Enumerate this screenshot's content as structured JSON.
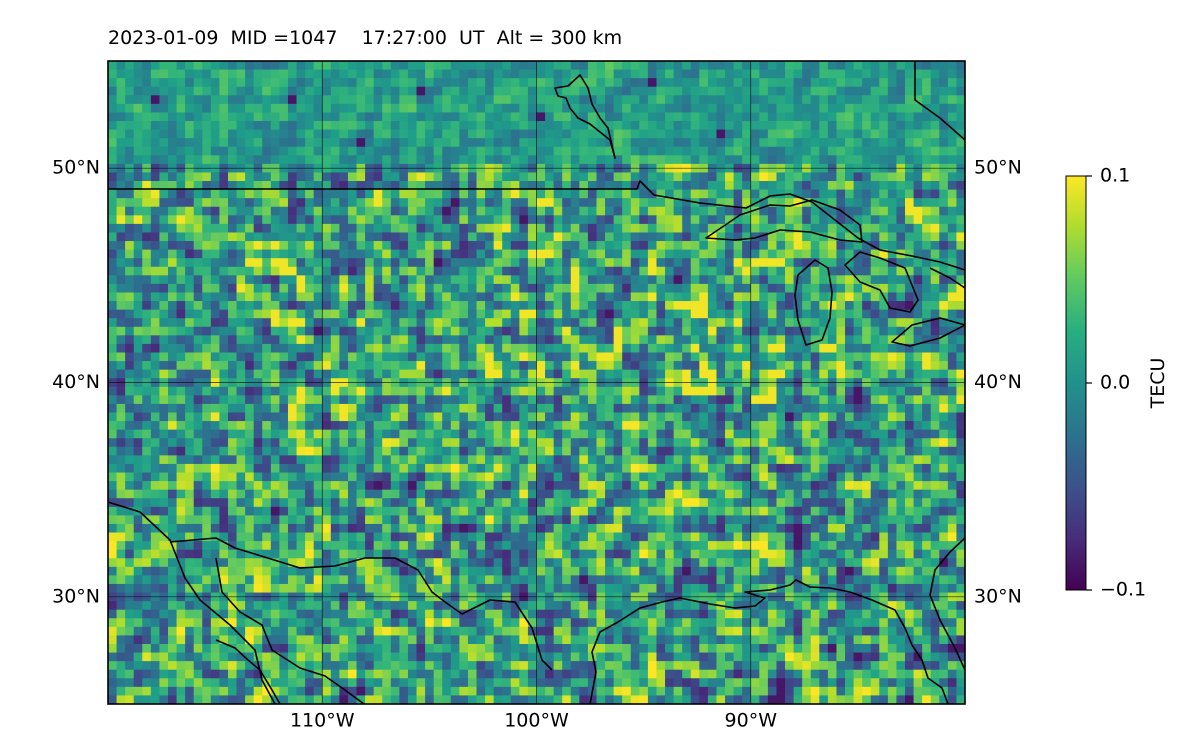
{
  "title": "2023-01-09  MID =1047    17:27:00  UT  Alt = 300 km",
  "map": {
    "projection": "PlateCarree",
    "lon_range": [
      -120,
      -80
    ],
    "lat_range": [
      25,
      55
    ],
    "gridlines": true,
    "lon_ticks": [
      -110,
      -100,
      -90
    ],
    "lon_tick_labels": [
      "110°W",
      "100°W",
      "90°W"
    ],
    "lat_ticks": [
      50,
      40,
      30
    ],
    "lat_tick_labels": [
      "50°N",
      "40°N",
      "30°N"
    ],
    "features": [
      "coastlines",
      "country borders",
      "great lakes"
    ]
  },
  "chart_data": {
    "type": "heatmap",
    "variable": "TEC perturbation",
    "colormap": "viridis",
    "vmin": -0.1,
    "vmax": 0.1,
    "colorbar": {
      "label": "TECU",
      "ticks": [
        0.1,
        0.0,
        -0.1
      ],
      "tick_labels": [
        "0.1",
        "0.0",
        "−0.1"
      ]
    }
  }
}
